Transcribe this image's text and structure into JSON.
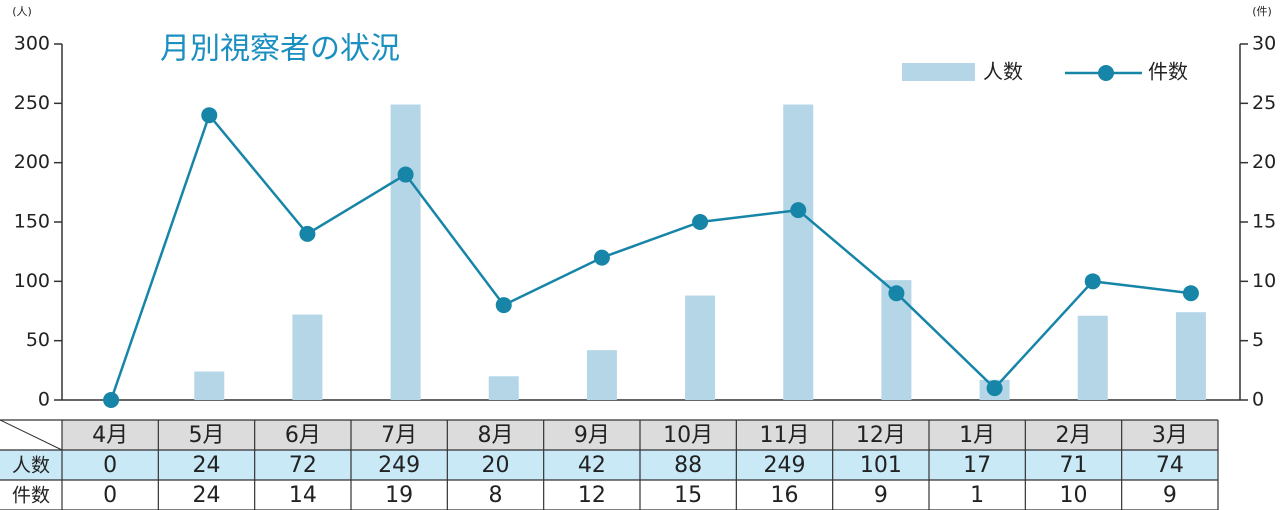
{
  "chart_data": {
    "type": "bar",
    "title": "月別視察者の状況",
    "y_label": "(人)",
    "y2_label": "(件)",
    "categories": [
      "4月",
      "5月",
      "6月",
      "7月",
      "8月",
      "9月",
      "10月",
      "11月",
      "12月",
      "1月",
      "2月",
      "3月"
    ],
    "series": [
      {
        "name": "人数",
        "type": "bar",
        "color": "#b5d6e7",
        "axis": "y",
        "values": [
          0,
          24,
          72,
          249,
          20,
          42,
          88,
          249,
          101,
          17,
          71,
          74
        ]
      },
      {
        "name": "件数",
        "type": "line",
        "color": "#1685a8",
        "axis": "y2",
        "values": [
          0,
          24,
          14,
          19,
          8,
          12,
          15,
          16,
          9,
          1,
          10,
          9
        ]
      }
    ],
    "ylim": [
      0,
      300
    ],
    "yticks": [
      0,
      50,
      100,
      150,
      200,
      250,
      300
    ],
    "y2lim": [
      0,
      30
    ],
    "y2ticks": [
      0,
      5,
      10,
      15,
      20,
      25,
      30
    ],
    "legend": "top-right"
  }
}
